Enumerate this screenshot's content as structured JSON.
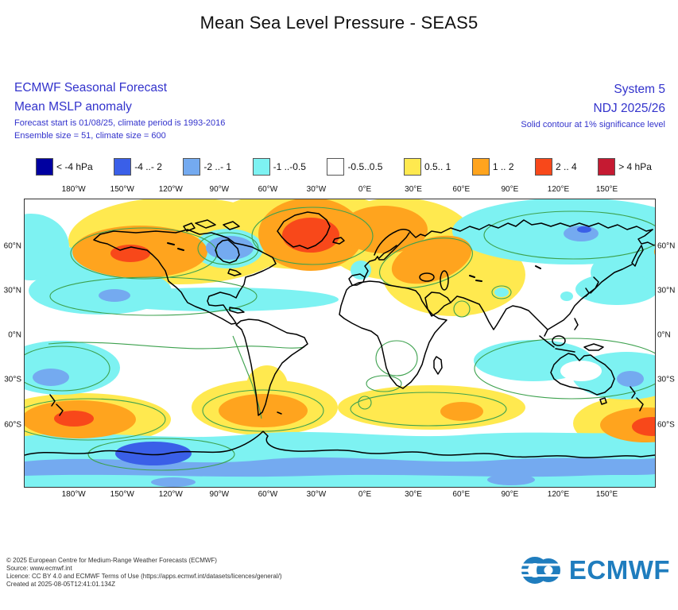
{
  "title": "Mean Sea Level Pressure - SEAS5",
  "header": {
    "left": {
      "line1": "ECMWF Seasonal Forecast",
      "line2": "Mean MSLP anomaly",
      "line3": "Forecast start is 01/08/25, climate period is 1993-2016",
      "line4": "Ensemble size = 51, climate size = 600"
    },
    "right": {
      "line1": "System 5",
      "line2": "NDJ 2025/26",
      "line3": "Solid contour at 1% significance level"
    }
  },
  "legend": {
    "items": [
      {
        "label": "< -4 hPa",
        "color": "#0000a0"
      },
      {
        "label": "-4 ..- 2",
        "color": "#3a5fe8"
      },
      {
        "label": "-2 ..- 1",
        "color": "#74aaf0"
      },
      {
        "label": "-1 ..-0.5",
        "color": "#7df2f2"
      },
      {
        "label": "-0.5..0.5",
        "color": "#ffffff"
      },
      {
        "label": "0.5.. 1",
        "color": "#ffe94f"
      },
      {
        "label": "1 .. 2",
        "color": "#ffa41e"
      },
      {
        "label": "2 .. 4",
        "color": "#f8481a"
      },
      {
        "label": "> 4 hPa",
        "color": "#c51a32"
      }
    ]
  },
  "axes": {
    "lon_ticks": [
      "180°W",
      "150°W",
      "120°W",
      "90°W",
      "60°W",
      "30°W",
      "0°E",
      "30°E",
      "60°E",
      "90°E",
      "120°E",
      "150°E"
    ],
    "lat_ticks": [
      "60°N",
      "30°N",
      "0°N",
      "30°S",
      "60°S"
    ]
  },
  "footer": {
    "lines": [
      "© 2025 European Centre for Medium-Range Weather Forecasts (ECMWF)",
      "Source: www.ecmwf.int",
      "Licence: CC BY 4.0 and ECMWF Terms of Use (https://apps.ecmwf.int/datasets/licences/general/)",
      "Created at 2025-08-05T12:41:01.134Z"
    ],
    "logo_text": "ECMWF"
  },
  "palette": {
    "navy": "#0000a0",
    "blue": "#3a5fe8",
    "lightblue": "#74aaf0",
    "cyan": "#7df2f2",
    "white": "#ffffff",
    "yellow": "#ffe94f",
    "orange": "#ffa41e",
    "orangered": "#f8481a",
    "crimson": "#c51a32",
    "green_contour": "#3da14e",
    "coast": "#000000",
    "header_blue": "#3333cc",
    "logo_blue": "#1f7dbe"
  },
  "chart_data": {
    "type": "heatmap",
    "title": "Mean Sea Level Pressure - SEAS5",
    "product": "ECMWF Seasonal Forecast — Mean MSLP anomaly",
    "system": "System 5",
    "valid_season": "NDJ 2025/26",
    "forecast_start": "01/08/25",
    "climate_period": "1993-2016",
    "ensemble_size": 51,
    "climate_size": 600,
    "significance_note": "Solid contour at 1% significance level",
    "units": "hPa",
    "bins": [
      "< -4",
      "-4..-2",
      "-2..-1",
      "-1..-0.5",
      "-0.5..0.5",
      "0.5..1",
      "1..2",
      "2..4",
      "> 4"
    ],
    "bin_colors": [
      "#0000a0",
      "#3a5fe8",
      "#74aaf0",
      "#7df2f2",
      "#ffffff",
      "#ffe94f",
      "#ffa41e",
      "#f8481a",
      "#c51a32"
    ],
    "lon_ticks_deg": [
      -180,
      -150,
      -120,
      -90,
      -60,
      -30,
      0,
      30,
      60,
      90,
      120,
      150
    ],
    "lat_ticks_deg": [
      60,
      30,
      0,
      -30,
      -60
    ],
    "projection": "plate-carree, global",
    "anomaly_centers": [
      {
        "region": "Alaska / NW Canada",
        "lat": 62,
        "lon": -145,
        "anomaly_hpa": "2 to 4"
      },
      {
        "region": "Greenland / Iceland",
        "lat": 68,
        "lon": -40,
        "anomaly_hpa": "2 to 4"
      },
      {
        "region": "Scandinavia to Urals",
        "lat": 58,
        "lon": 45,
        "anomaly_hpa": "1 to 2"
      },
      {
        "region": "Arctic band (positive belt)",
        "lat": 75,
        "lon": -60,
        "anomaly_hpa": "0.5 to 1"
      },
      {
        "region": "Hudson Bay",
        "lat": 58,
        "lon": -80,
        "anomaly_hpa": "-2 to -1"
      },
      {
        "region": "North Pacific 30-40N",
        "lat": 35,
        "lon": -165,
        "anomaly_hpa": "-2 to -1"
      },
      {
        "region": "NE Siberia / East Arctic",
        "lat": 68,
        "lon": 150,
        "anomaly_hpa": "-2 to -1"
      },
      {
        "region": "Western Europe (UK)",
        "lat": 52,
        "lon": -3,
        "anomaly_hpa": "-1 to -0.5"
      },
      {
        "region": "West Pacific near Japan",
        "lat": 32,
        "lon": 155,
        "anomaly_hpa": "-1 to -0.5"
      },
      {
        "region": "Subtropical South Pacific",
        "lat": -28,
        "lon": -172,
        "anomaly_hpa": "-2 to -1"
      },
      {
        "region": "Australia / Coral Sea",
        "lat": -25,
        "lon": 150,
        "anomaly_hpa": "-2 to -1"
      },
      {
        "region": "Southeast of New Zealand",
        "lat": -55,
        "lon": -178,
        "anomaly_hpa": "2 to 4"
      },
      {
        "region": "Southern South America",
        "lat": -52,
        "lon": -75,
        "anomaly_hpa": "1 to 2"
      },
      {
        "region": "South Indian Ocean",
        "lat": -52,
        "lon": 60,
        "anomaly_hpa": "1 to 2"
      },
      {
        "region": "Circumpolar Antarctic trough",
        "lat": -72,
        "lon": -120,
        "anomaly_hpa": "-4 to -2"
      }
    ]
  }
}
